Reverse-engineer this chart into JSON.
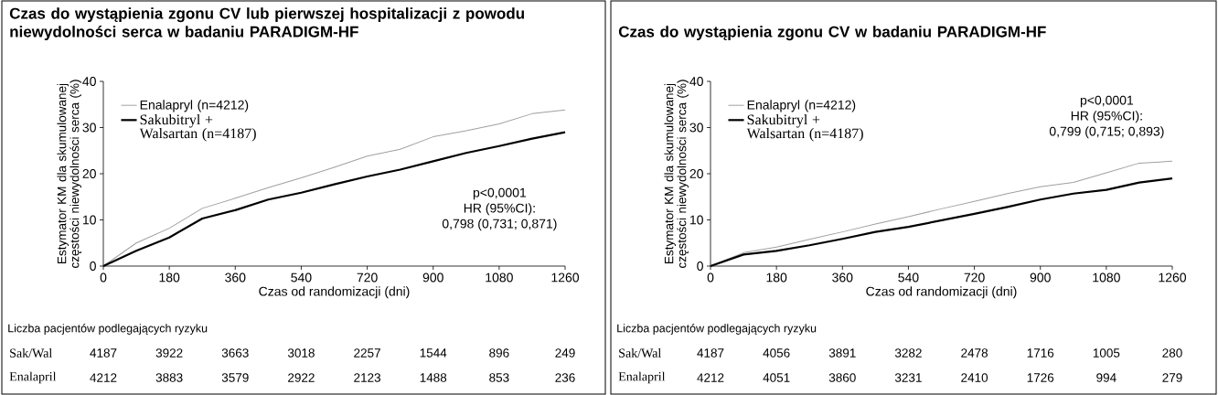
{
  "chart_data": [
    {
      "type": "line",
      "title": "Czas do wystąpienia zgonu CV lub pierwszej hospitalizacji z powodu niewydolności serca w badaniu PARADIGM-HF",
      "xlabel": "Czas od randomizacji (dni)",
      "ylabel": "Estymator KM dla skumulowanej częstości niewydolności serca (%)",
      "legend": "top left",
      "x": [
        0,
        90,
        180,
        270,
        360,
        450,
        540,
        630,
        720,
        810,
        900,
        990,
        1080,
        1170,
        1260
      ],
      "xlim": [
        0,
        1260
      ],
      "xticks": [
        0,
        180,
        360,
        540,
        720,
        900,
        1080,
        1260
      ],
      "ylim": [
        0,
        40
      ],
      "yticks": [
        0,
        10,
        20,
        30,
        40
      ],
      "series": [
        {
          "name": "Enalapryl (n=4212)",
          "color": "#a0a0a0",
          "values": [
            0,
            5.0,
            8.2,
            12.5,
            14.7,
            17.0,
            19.1,
            21.4,
            23.8,
            25.3,
            28.0,
            29.3,
            30.8,
            33.0,
            33.8
          ]
        },
        {
          "name": "Sakubitryl + Walsartan (n=4187)",
          "color": "#000000",
          "values": [
            0,
            3.3,
            6.2,
            10.3,
            12.1,
            14.4,
            15.9,
            17.7,
            19.4,
            20.9,
            22.7,
            24.5,
            26.0,
            27.6,
            29.0
          ]
        }
      ],
      "annotations": [
        "p<0,0001",
        "HR (95%CI):",
        "0,798 (0,731; 0,871)",
        "Liczba pacjentów podlegających ryzyku",
        "Sak/Wal",
        "4187",
        "3922",
        "3663",
        "3018",
        "2257",
        "1544",
        "896",
        "249",
        "Enalapril",
        "4212",
        "3883",
        "3579",
        "2922",
        "2123",
        "1488",
        "853",
        "236"
      ]
    },
    {
      "type": "line",
      "title": "Czas do wystąpienia zgonu CV w badaniu PARADIGM-HF",
      "xlabel": "Czas od randomizacji (dni)",
      "ylabel": "Estymator KM dla skumulowanej częstości niewydolności serca (%)",
      "legend": "top left",
      "x": [
        0,
        90,
        180,
        270,
        360,
        450,
        540,
        630,
        720,
        810,
        900,
        990,
        1080,
        1170,
        1260
      ],
      "xlim": [
        0,
        1260
      ],
      "xticks": [
        0,
        180,
        360,
        540,
        720,
        900,
        1080,
        1260
      ],
      "ylim": [
        0,
        40
      ],
      "yticks": [
        0,
        10,
        20,
        30,
        40
      ],
      "series": [
        {
          "name": "Enalapryl (n=4212)",
          "color": "#a0a0a0",
          "values": [
            0,
            2.9,
            4.1,
            5.8,
            7.4,
            9.1,
            10.7,
            12.4,
            14.0,
            15.7,
            17.2,
            18.1,
            20.2,
            22.3,
            22.7
          ]
        },
        {
          "name": "Sakubitryl + Walsartan (n=4187)",
          "color": "#000000",
          "values": [
            0,
            2.5,
            3.3,
            4.5,
            5.9,
            7.4,
            8.5,
            9.9,
            11.3,
            12.8,
            14.4,
            15.7,
            16.5,
            18.1,
            19.0
          ]
        }
      ],
      "annotations": [
        "p<0,0001",
        "HR (95%CI):",
        "0,799 (0,715; 0,893)",
        "Liczba pacjentów podlegających ryzyku",
        "Sak/Wal",
        "4187",
        "4056",
        "3891",
        "3282",
        "2478",
        "1716",
        "1005",
        "280",
        "Enalapril",
        "4212",
        "4051",
        "3860",
        "3231",
        "2410",
        "1726",
        "994",
        "279"
      ]
    }
  ]
}
